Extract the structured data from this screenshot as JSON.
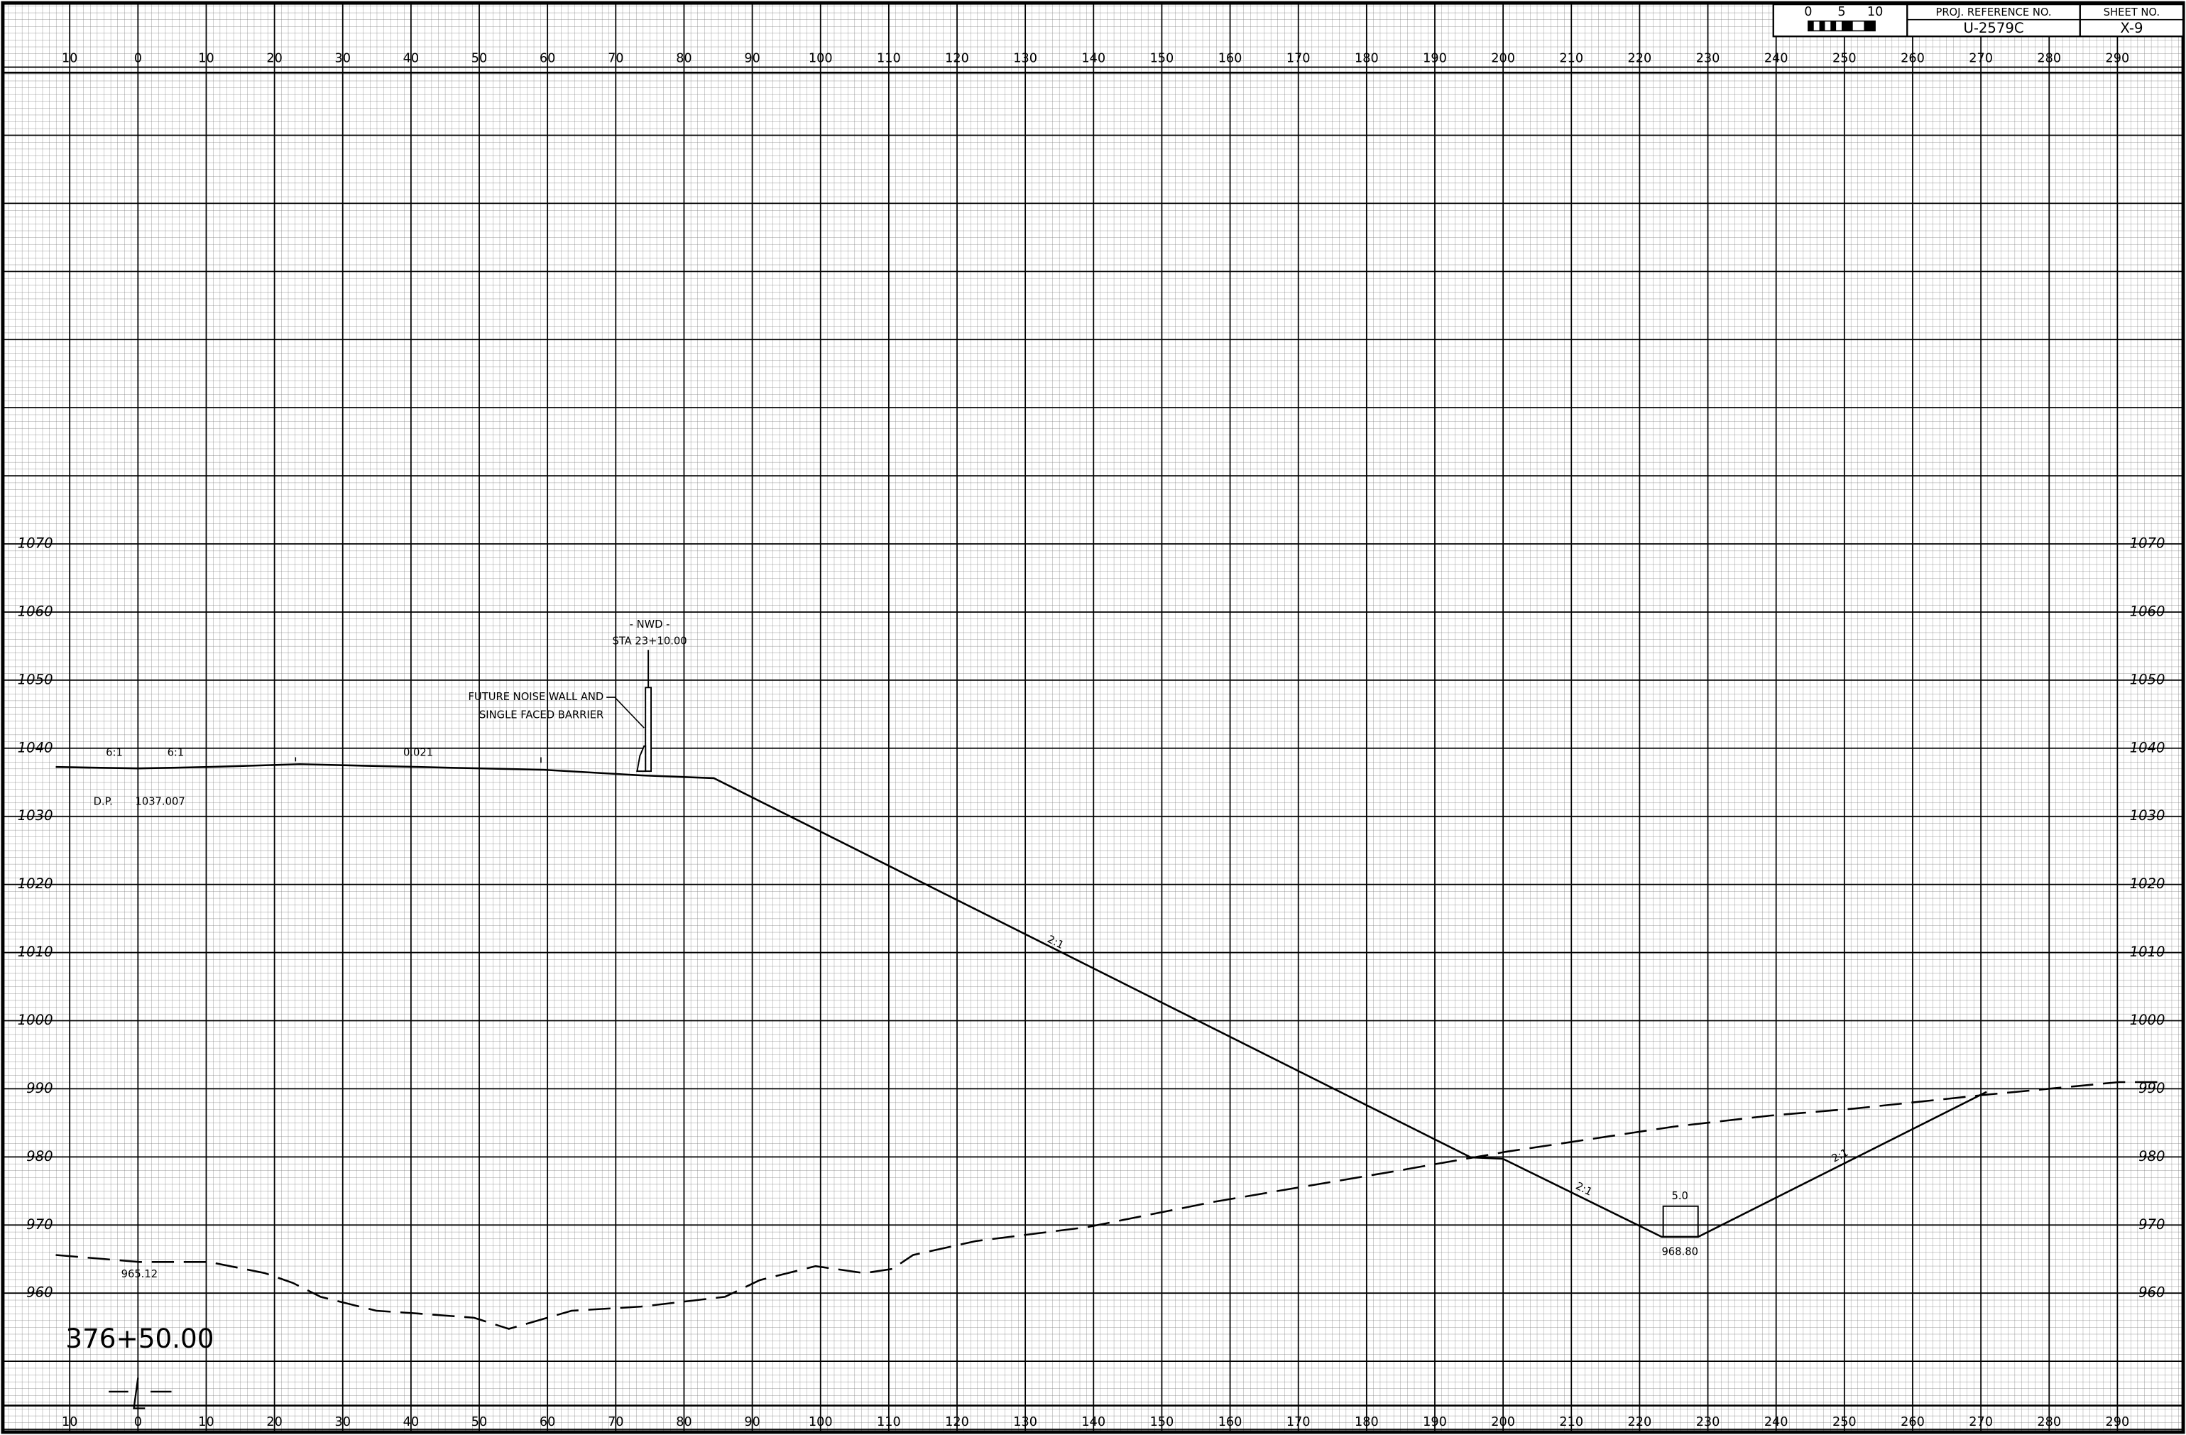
{
  "title_block": {
    "scale_labels": [
      "0",
      "5",
      "10"
    ],
    "proj_reference_label": "PROJ. REFERENCE NO.",
    "proj_reference": "U-2579C",
    "sheet_label": "SHEET NO.",
    "sheet": "X-9"
  },
  "offsets": [
    10,
    0,
    10,
    20,
    30,
    40,
    50,
    60,
    70,
    80,
    90,
    100,
    110,
    120,
    130,
    140,
    150,
    160,
    170,
    180,
    190,
    200,
    210,
    220,
    230,
    240,
    250,
    260,
    270,
    280,
    290
  ],
  "elevations": [
    1070,
    1060,
    1050,
    1040,
    1030,
    1020,
    1010,
    1000,
    990,
    980,
    970,
    960
  ],
  "annotations": {
    "slope_left_1": "6:1",
    "slope_left_2": "6:1",
    "cross_slope": "0.021",
    "dp_label": "D.P.",
    "dp_value": "1037.007",
    "nwd": "- NWD -",
    "nwd_station": "STA 23+10.00",
    "wall_note_1": "FUTURE NOISE WALL AND",
    "wall_note_2": "SINGLE FACED BARRIER",
    "slope_fill": "2:1",
    "slope_ditch_left": "2:1",
    "slope_ditch_right": "2:1",
    "ditch_width": "5.0",
    "ditch_elevation": "968.80",
    "existing_elevation": "965.12",
    "station": "376+50.00"
  }
}
